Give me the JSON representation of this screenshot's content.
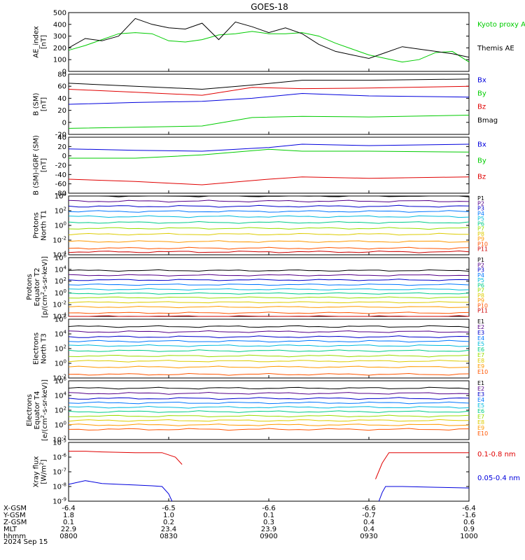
{
  "title": "GOES-18",
  "date_label": "2024 Sep 15",
  "colors": {
    "black": "#000000",
    "red": "#e00000",
    "green": "#00cc00",
    "blue": "#0000dd",
    "channels": [
      "#000000",
      "#550088",
      "#0000cc",
      "#0077ff",
      "#00bbdd",
      "#00cc88",
      "#99dd00",
      "#ddcc00",
      "#ff9900",
      "#ff5500",
      "#cc0000"
    ]
  },
  "x_axis": {
    "tick_times": [
      "0800",
      "0830",
      "0900",
      "0930",
      "1000"
    ],
    "rows": [
      {
        "label": "X-GSM",
        "values": [
          "-6.4",
          "-6.5",
          "-6.6",
          "-6.6",
          "-6.4"
        ]
      },
      {
        "label": "Y-GSM",
        "values": [
          "1.8",
          "1.0",
          "0.1",
          "-0.7",
          "-1.6"
        ]
      },
      {
        "label": "Z-GSM",
        "values": [
          "0.1",
          "0.2",
          "0.3",
          "0.4",
          "0.6"
        ]
      },
      {
        "label": "MLT",
        "values": [
          "22.9",
          "23.4",
          "23.9",
          "0.4",
          "0.9"
        ]
      },
      {
        "label": "hhmm",
        "values": [
          "0800",
          "0830",
          "0900",
          "0930",
          "1000"
        ]
      }
    ]
  },
  "chart_data": [
    {
      "type": "line",
      "ylabel": [
        "AE_index",
        "[nT]"
      ],
      "ylim": [
        0,
        500
      ],
      "y_ticks": [
        "0",
        "100",
        "200",
        "300",
        "400",
        "500"
      ],
      "legend": [
        "Kyoto proxy AE",
        "Themis AE"
      ],
      "series": [
        {
          "name": "Kyoto proxy AE",
          "color": "#00cc00",
          "x": [
            0,
            5,
            10,
            15,
            20,
            25,
            30,
            35,
            40,
            45,
            50,
            55,
            60,
            65,
            70,
            75,
            80,
            85,
            90,
            95,
            100,
            105,
            110,
            115,
            120
          ],
          "values": [
            180,
            220,
            270,
            320,
            330,
            320,
            260,
            250,
            270,
            310,
            320,
            340,
            320,
            320,
            330,
            300,
            240,
            190,
            140,
            110,
            80,
            100,
            160,
            170,
            80
          ]
        },
        {
          "name": "Themis AE",
          "color": "#000000",
          "x": [
            0,
            5,
            10,
            15,
            20,
            25,
            30,
            35,
            40,
            45,
            50,
            55,
            60,
            65,
            70,
            75,
            80,
            85,
            90,
            95,
            100,
            105,
            110,
            115,
            120
          ],
          "values": [
            200,
            280,
            260,
            300,
            450,
            400,
            370,
            360,
            410,
            270,
            420,
            380,
            330,
            370,
            320,
            230,
            170,
            140,
            110,
            160,
            210,
            190,
            170,
            150,
            120
          ]
        }
      ]
    },
    {
      "type": "line",
      "ylabel": [
        "B (SM)",
        "[nT]"
      ],
      "ylim": [
        -20,
        80
      ],
      "y_ticks": [
        "-20",
        "0",
        "20",
        "40",
        "60",
        "80"
      ],
      "legend": [
        "Bx",
        "By",
        "Bz",
        "Bmag"
      ],
      "series": [
        {
          "name": "Bx",
          "color": "#0000dd",
          "x": [
            0,
            20,
            40,
            55,
            70,
            90,
            120
          ],
          "values": [
            30,
            33,
            35,
            40,
            48,
            44,
            42
          ]
        },
        {
          "name": "By",
          "color": "#00cc00",
          "x": [
            0,
            20,
            40,
            55,
            70,
            90,
            120
          ],
          "values": [
            -10,
            -8,
            -6,
            8,
            10,
            9,
            12
          ]
        },
        {
          "name": "Bz",
          "color": "#e00000",
          "x": [
            0,
            20,
            40,
            55,
            70,
            90,
            120
          ],
          "values": [
            55,
            50,
            45,
            58,
            56,
            57,
            60
          ]
        },
        {
          "name": "Bmag",
          "color": "#000000",
          "x": [
            0,
            20,
            40,
            55,
            70,
            90,
            120
          ],
          "values": [
            65,
            60,
            55,
            62,
            70,
            70,
            72
          ]
        }
      ]
    },
    {
      "type": "line",
      "ylabel": [
        "B (SM)-IGRF (SM)",
        "[nT]"
      ],
      "ylim": [
        -80,
        40
      ],
      "y_ticks": [
        "-80",
        "-60",
        "-40",
        "-20",
        "0",
        "20",
        "40"
      ],
      "legend": [
        "Bx",
        "By",
        "Bz"
      ],
      "series": [
        {
          "name": "Bx",
          "color": "#0000dd",
          "x": [
            0,
            20,
            40,
            60,
            70,
            90,
            120
          ],
          "values": [
            15,
            12,
            10,
            18,
            25,
            22,
            25
          ]
        },
        {
          "name": "By",
          "color": "#00cc00",
          "x": [
            0,
            20,
            40,
            60,
            70,
            90,
            120
          ],
          "values": [
            -5,
            -5,
            2,
            14,
            10,
            10,
            8
          ]
        },
        {
          "name": "Bz",
          "color": "#e00000",
          "x": [
            0,
            20,
            40,
            60,
            70,
            90,
            120
          ],
          "values": [
            -50,
            -55,
            -62,
            -50,
            -45,
            -48,
            -45
          ]
        }
      ]
    },
    {
      "type": "line",
      "scale": "log",
      "ylabel": [
        "Protons",
        "North T1"
      ],
      "ylim": [
        -4,
        4
      ],
      "y_ticks": [
        "10^-4",
        "10^-2",
        "10^0",
        "10^2",
        "10^4"
      ],
      "legend": [
        "P1",
        "P2",
        "P3",
        "P4",
        "P5",
        "P6",
        "P7",
        "P8",
        "P9",
        "P10",
        "P11"
      ],
      "levels": [
        4,
        3.3,
        2.6,
        1.9,
        1.2,
        0.4,
        -0.4,
        -1.2,
        -2.2,
        -3.1,
        -3.6
      ]
    },
    {
      "type": "line",
      "scale": "log",
      "ylabel": [
        "Protons",
        "Equator T2",
        "[p/(cm^2-s-sr-keV)]"
      ],
      "ylim": [
        -4,
        6
      ],
      "y_ticks": [
        "10^-4",
        "10^-2",
        "10^0",
        "10^2",
        "10^4",
        "10^6"
      ],
      "legend": [
        "P1",
        "P2",
        "P3",
        "P4",
        "P5",
        "P6",
        "P7",
        "P8",
        "P9",
        "P10",
        "P11"
      ],
      "levels": [
        3.8,
        3.0,
        2.2,
        1.4,
        0.6,
        -0.1,
        -0.8,
        -1.6,
        -2.4,
        -3.4,
        -4.0
      ]
    },
    {
      "type": "line",
      "scale": "log",
      "ylabel": [
        "Electrons",
        "North T3"
      ],
      "ylim": [
        -2,
        6
      ],
      "y_ticks": [
        "10^-2",
        "10^0",
        "10^2",
        "10^4",
        "10^6"
      ],
      "legend": [
        "E1",
        "E2",
        "E3",
        "E4",
        "E5",
        "E6",
        "E7",
        "E8",
        "E9",
        "E10"
      ],
      "levels": [
        5.0,
        4.3,
        3.6,
        3.0,
        2.4,
        1.7,
        1.0,
        0.3,
        -0.5,
        -1.5
      ]
    },
    {
      "type": "line",
      "scale": "log",
      "ylabel": [
        "Electrons",
        "Equator T4",
        "[e/(cm^2-s-sr-keV)]"
      ],
      "ylim": [
        -2,
        6
      ],
      "y_ticks": [
        "10^-2",
        "10^0",
        "10^2",
        "10^4",
        "10^6"
      ],
      "legend": [
        "E1",
        "E2",
        "E3",
        "E4",
        "E5",
        "E6",
        "E7",
        "E8",
        "E9",
        "E10"
      ],
      "levels": [
        5.0,
        4.3,
        3.6,
        3.0,
        2.4,
        1.8,
        1.2,
        0.6,
        0.0,
        -0.6
      ]
    },
    {
      "type": "line",
      "scale": "log",
      "ylabel": [
        "Xray flux",
        "[W/m^2]"
      ],
      "ylim": [
        -9,
        -5
      ],
      "y_ticks": [
        "10^-9",
        "10^-8",
        "10^-7",
        "10^-6",
        "10^-5"
      ],
      "legend": [
        "0.1-0.8 nm",
        "0.05-0.4 nm"
      ],
      "series": [
        {
          "name": "0.1-0.8 nm",
          "color": "#e00000",
          "segments": [
            {
              "x": [
                0,
                5,
                10,
                20,
                28,
                32,
                34
              ],
              "values": [
                -5.6,
                -5.6,
                -5.65,
                -5.7,
                -5.7,
                -6.0,
                -6.5
              ]
            },
            {
              "x": [
                92,
                94,
                96,
                100,
                110,
                120
              ],
              "values": [
                -7.5,
                -6.4,
                -5.7,
                -5.7,
                -5.7,
                -5.7
              ]
            }
          ]
        },
        {
          "name": "0.05-0.4 nm",
          "color": "#0000dd",
          "segments": [
            {
              "x": [
                0,
                5,
                10,
                15,
                20,
                25,
                28,
                30,
                31
              ],
              "values": [
                -7.85,
                -7.6,
                -7.8,
                -7.85,
                -7.9,
                -7.95,
                -8.0,
                -8.5,
                -9.0
              ]
            },
            {
              "x": [
                93,
                94,
                95,
                100,
                110,
                120
              ],
              "values": [
                -9.0,
                -8.4,
                -8.0,
                -8.0,
                -8.05,
                -8.1
              ]
            }
          ]
        }
      ]
    }
  ]
}
